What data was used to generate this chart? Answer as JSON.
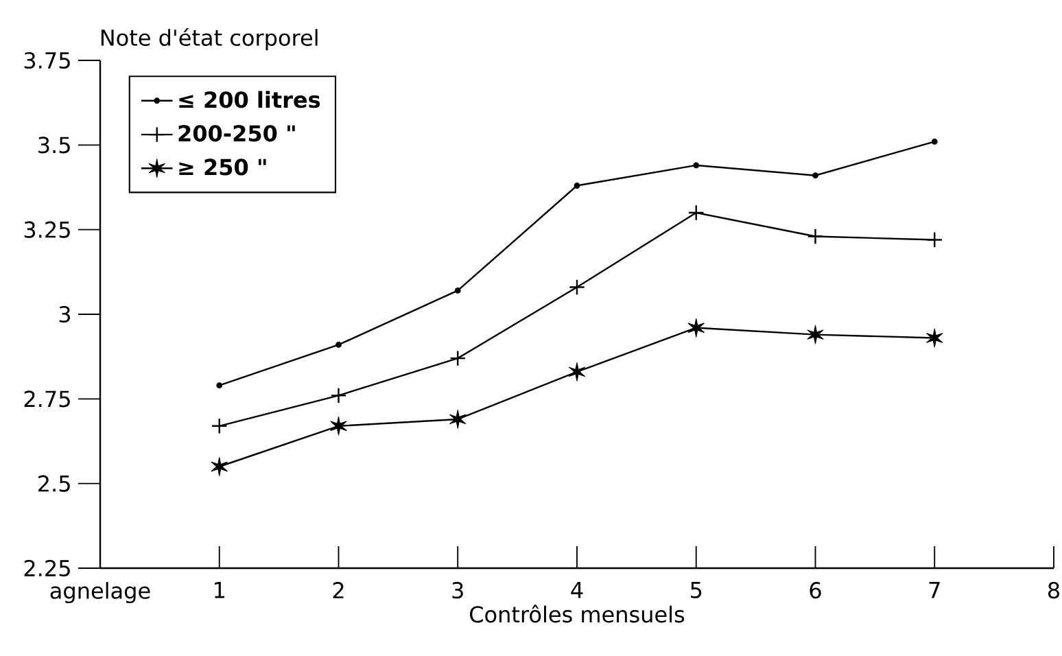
{
  "chart_data": {
    "type": "line",
    "ylabel": "Note d'état corporel",
    "xlabel": "Contrôles mensuels",
    "x": [
      1,
      2,
      3,
      4,
      5,
      6,
      7
    ],
    "xlim": [
      0,
      8
    ],
    "xticks": [
      {
        "value": 0,
        "label": "agnelage"
      },
      1,
      2,
      3,
      4,
      5,
      6,
      7,
      8
    ],
    "ylim": [
      2.25,
      3.75
    ],
    "yticks": [
      2.25,
      2.5,
      2.75,
      3,
      3.25,
      3.5,
      3.75
    ],
    "legend": "top left",
    "grid": false,
    "series": [
      {
        "name": "≤ 200 litres",
        "color": "#000000",
        "marker": "circle",
        "values": [
          2.79,
          2.91,
          3.07,
          3.38,
          3.44,
          3.41,
          3.51
        ]
      },
      {
        "name": "200-250 \"",
        "color": "#000000",
        "marker": "cross",
        "values": [
          2.67,
          2.76,
          2.87,
          3.08,
          3.3,
          3.23,
          3.22
        ]
      },
      {
        "name": "≥ 250 \"",
        "color": "#000000",
        "marker": "star",
        "values": [
          2.55,
          2.67,
          2.69,
          2.83,
          2.96,
          2.94,
          2.93
        ]
      }
    ]
  }
}
